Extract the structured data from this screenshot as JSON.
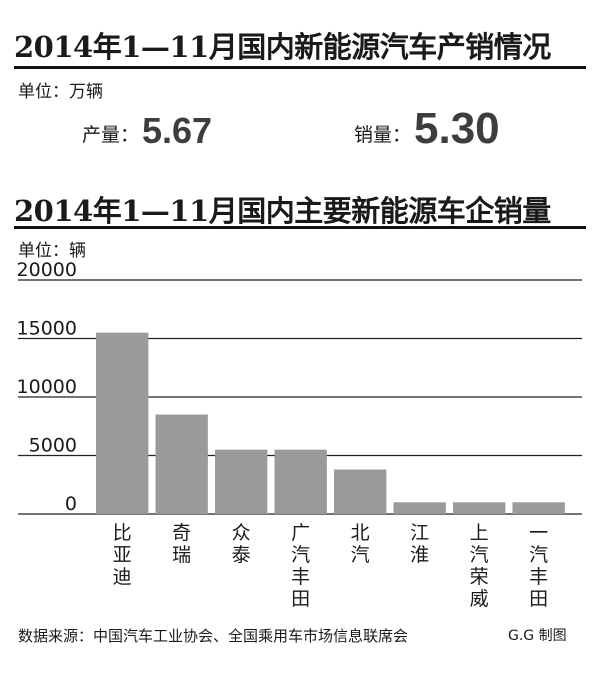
{
  "section1": {
    "title": "2014年1—11月国内新能源汽车产销情况",
    "unit": "单位：万辆",
    "production_label": "产量：",
    "production_value": "5.67",
    "sales_label": "销量：",
    "sales_value": "5.30"
  },
  "section2": {
    "title": "2014年1—11月国内主要新能源车企销量",
    "unit": "单位：辆"
  },
  "footer": {
    "source": "数据来源：中国汽车工业协会、全国乘用车市场信息联席会",
    "credit": "G.G 制图"
  },
  "colors": {
    "bar": "#9a9a9a",
    "grid": "#222222",
    "text": "#1a1a1a"
  },
  "chart_data": {
    "type": "bar",
    "categories": [
      "比亚迪",
      "奇瑞",
      "众泰",
      "广汽丰田",
      "北汽",
      "江淮",
      "上汽荣威",
      "一汽丰田"
    ],
    "values": [
      15500,
      8500,
      5500,
      5500,
      3800,
      1000,
      1000,
      1000
    ],
    "ylim": [
      0,
      20000
    ],
    "yticks": [
      "0",
      "5000",
      "10000",
      "15000",
      "20000"
    ],
    "grid": true,
    "orientation": "vertical-category-labels"
  }
}
